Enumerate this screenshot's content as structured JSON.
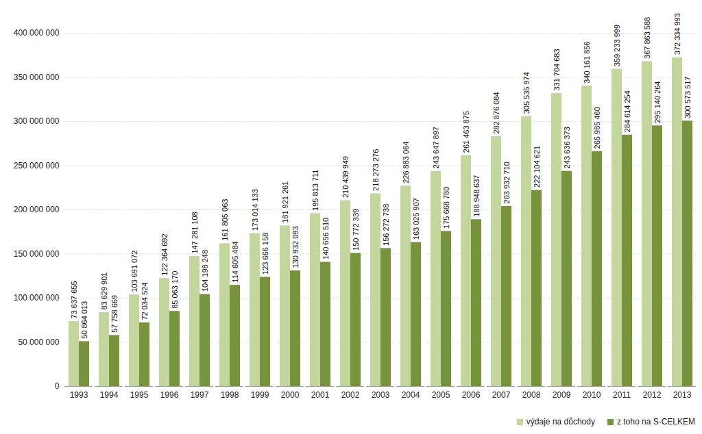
{
  "chart_data": {
    "type": "bar",
    "categories": [
      "1993",
      "1994",
      "1995",
      "1996",
      "1997",
      "1998",
      "1999",
      "2000",
      "2001",
      "2002",
      "2003",
      "2004",
      "2005",
      "2006",
      "2007",
      "2008",
      "2009",
      "2010",
      "2011",
      "2012",
      "2013"
    ],
    "series": [
      {
        "name": "výdaje na důchody",
        "color": "#c3d69b",
        "values": [
          73637655,
          83629901,
          103691072,
          122364692,
          147281108,
          161805063,
          173014133,
          181921261,
          195813711,
          210439949,
          218273276,
          226883064,
          243647897,
          261463875,
          282876084,
          305535974,
          331704683,
          340161856,
          359233999,
          367863588,
          372334993
        ],
        "value_labels": [
          "73 637 655",
          "83 629 901",
          "103 691 072",
          "122 364 692",
          "147 281 108",
          "161 805 063",
          "173 014 133",
          "181 921 261",
          "195 813 711",
          "210 439 949",
          "218 273 276",
          "226 883 064",
          "243 647 897",
          "261 463 875",
          "282 876 084",
          "305 535 974",
          "331 704 683",
          "340 161 856",
          "359 233 999",
          "367 863 588",
          "372 334 993"
        ]
      },
      {
        "name": "z toho na S-CELKEM",
        "color": "#77933c",
        "values": [
          50864013,
          57758669,
          72034524,
          85063170,
          104198248,
          114605484,
          123666158,
          130932093,
          140656510,
          150772339,
          156272738,
          163025907,
          175668780,
          188948637,
          203932710,
          222104621,
          243636373,
          265985460,
          284614254,
          295140264,
          300573517
        ],
        "value_labels": [
          "50 864 013",
          "57 758 669",
          "72 034 524",
          "85 063 170",
          "104 198 248",
          "114 605 484",
          "123 666 158",
          "130 932 093",
          "140 656 510",
          "150 772 339",
          "156 272 738",
          "163 025 907",
          "175 668 780",
          "188 948 637",
          "203 932 710",
          "222 104 621",
          "243 636 373",
          "265 985 460",
          "284 614 254",
          "295 140 264",
          "300 573 517"
        ]
      }
    ],
    "ylim": [
      0,
      400000000
    ],
    "yticks": [
      0,
      {
        "value": 50000000,
        "label": "50 000 000"
      },
      {
        "value": 100000000,
        "label": "100 000 000"
      },
      {
        "value": 150000000,
        "label": "150 000 000"
      },
      {
        "value": 200000000,
        "label": "200 000 000"
      },
      {
        "value": 250000000,
        "label": "250 000 000"
      },
      {
        "value": 300000000,
        "label": "300 000 000"
      },
      {
        "value": 350000000,
        "label": "350 000 000"
      },
      {
        "value": 400000000,
        "label": "400 000 000"
      }
    ],
    "grid": true,
    "data_labels": true,
    "legend": "bottom-right"
  }
}
